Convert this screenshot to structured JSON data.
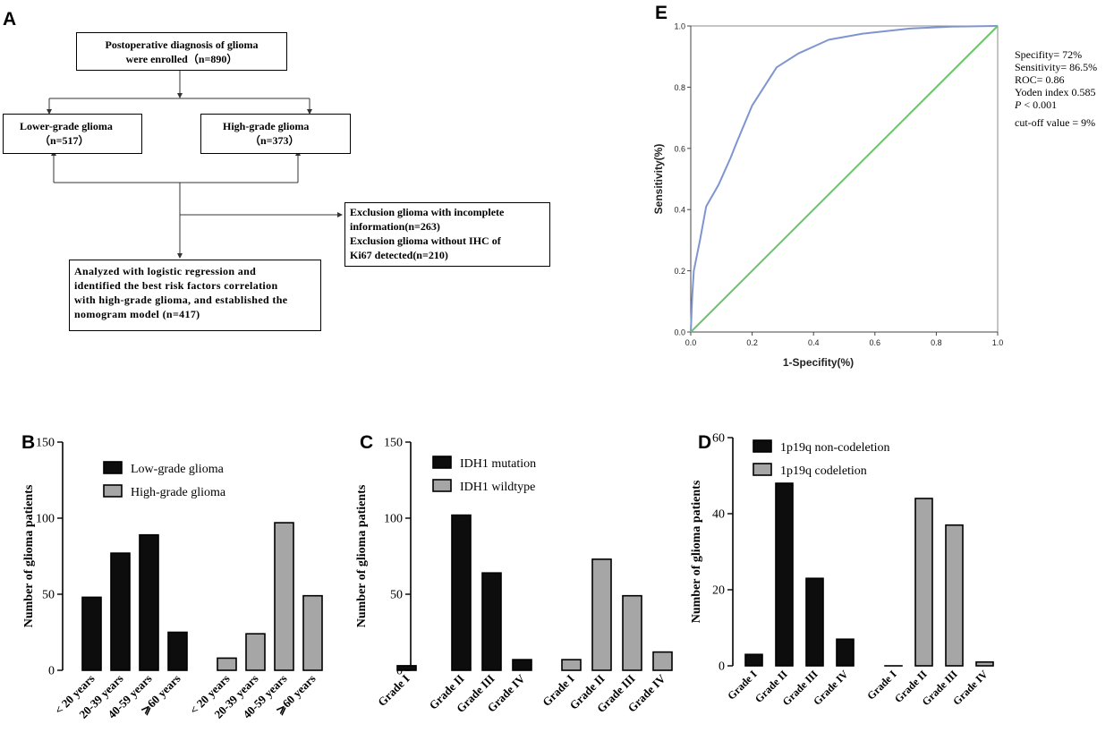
{
  "panels": {
    "A": "A",
    "B": "B",
    "C": "C",
    "D": "D",
    "E": "E"
  },
  "flowchart": {
    "top": {
      "line1": "Postoperative diagnosis of glioma",
      "line2": "were enrolled（n=890）"
    },
    "lgg": {
      "line1": "Lower-grade glioma",
      "line2": "（n=517）"
    },
    "hgg": {
      "line1": "High-grade glioma",
      "line2": "（n=373）"
    },
    "exclusion": {
      "line1": "Exclusion glioma with incomplete",
      "line2": "information(n=263)",
      "line3": "Exclusion glioma without IHC of",
      "line4": "Ki67 detected(n=210)"
    },
    "final": {
      "line1": "Analyzed with logistic regression and",
      "line2": "identified the best risk factors correlation",
      "line3": "with high-grade glioma, and established the",
      "line4": "nomogram model (n=417)"
    }
  },
  "chart_data": [
    {
      "id": "B",
      "type": "bar",
      "ylabel": "Number of glioma patients",
      "ylim": [
        0,
        150
      ],
      "yticks": [
        0,
        50,
        100,
        150
      ],
      "categories": [
        "< 20 years",
        "20-39 years",
        "40-59 years",
        "⩾60 years",
        "< 20 years",
        "20-39 years",
        "40-59 years",
        "⩾60 years"
      ],
      "series": [
        {
          "name": "Low-grade glioma",
          "color": "#0d0d0d",
          "values": [
            48,
            77,
            89,
            25,
            null,
            null,
            null,
            null
          ]
        },
        {
          "name": "High-grade glioma",
          "color": "#a6a6a6",
          "values": [
            null,
            null,
            null,
            null,
            8,
            24,
            97,
            49
          ]
        }
      ],
      "legend": "top-right"
    },
    {
      "id": "C",
      "type": "bar",
      "ylabel": "Number of glioma patients",
      "ylim": [
        0,
        150
      ],
      "yticks": [
        0,
        50,
        100,
        150
      ],
      "categories": [
        "Grade I",
        "Grade II",
        "Grade III",
        "Grade IV",
        "Grade I",
        "Grade II",
        "Grade III",
        "Grade IV"
      ],
      "series": [
        {
          "name": "IDH1 mutation",
          "color": "#0d0d0d",
          "values": [
            3,
            102,
            64,
            7,
            null,
            null,
            null,
            null
          ]
        },
        {
          "name": "IDH1 wildtype",
          "color": "#a6a6a6",
          "values": [
            null,
            null,
            null,
            null,
            7,
            73,
            49,
            12
          ]
        }
      ],
      "legend": "top-right"
    },
    {
      "id": "D",
      "type": "bar",
      "ylabel": "Number of glioma patients",
      "ylim": [
        0,
        60
      ],
      "yticks": [
        0,
        20,
        40,
        60
      ],
      "categories": [
        "Grade I",
        "Grade II",
        "Grade III",
        "Grade IV",
        "Grade I",
        "Grade II",
        "Grade III",
        "Grade IV"
      ],
      "series": [
        {
          "name": "1p19q non-codeletion",
          "color": "#0d0d0d",
          "values": [
            3,
            48,
            23,
            7,
            null,
            null,
            null,
            null
          ]
        },
        {
          "name": "1p19q codeletion",
          "color": "#a6a6a6",
          "values": [
            null,
            null,
            null,
            null,
            0,
            44,
            37,
            1
          ]
        }
      ],
      "legend": "top-left"
    },
    {
      "id": "E",
      "type": "line",
      "title": "",
      "xlabel": "1-Specifity(%)",
      "ylabel": "Sensitivity(%)",
      "xlim": [
        0,
        1
      ],
      "ylim": [
        0,
        1
      ],
      "xticks": [
        0.0,
        0.2,
        0.4,
        0.6,
        0.8,
        1.0
      ],
      "yticks": [
        0.0,
        0.2,
        0.4,
        0.6,
        0.8,
        1.0
      ],
      "series": [
        {
          "name": "ROC curve",
          "color": "#7f95cf",
          "x": [
            0,
            0.005,
            0.01,
            0.03,
            0.05,
            0.09,
            0.13,
            0.15,
            0.2,
            0.28,
            0.35,
            0.45,
            0.56,
            0.72,
            0.85,
            1.0
          ],
          "y": [
            0,
            0.12,
            0.2,
            0.3,
            0.41,
            0.48,
            0.57,
            0.62,
            0.74,
            0.865,
            0.91,
            0.955,
            0.975,
            0.992,
            0.998,
            1.0
          ]
        },
        {
          "name": "Reference line",
          "color": "#6cc46c",
          "x": [
            0,
            1
          ],
          "y": [
            0,
            1
          ]
        }
      ],
      "stats": {
        "specifity": "Specifity= 72%",
        "sensitivity": "Sensitivity= 86.5%",
        "roc": "ROC= 0.86",
        "youden": "Yoden index 0.585",
        "p_italic": "P",
        "p_rest": " < 0.001",
        "cutoff": "cut-off value = 9%"
      }
    }
  ]
}
